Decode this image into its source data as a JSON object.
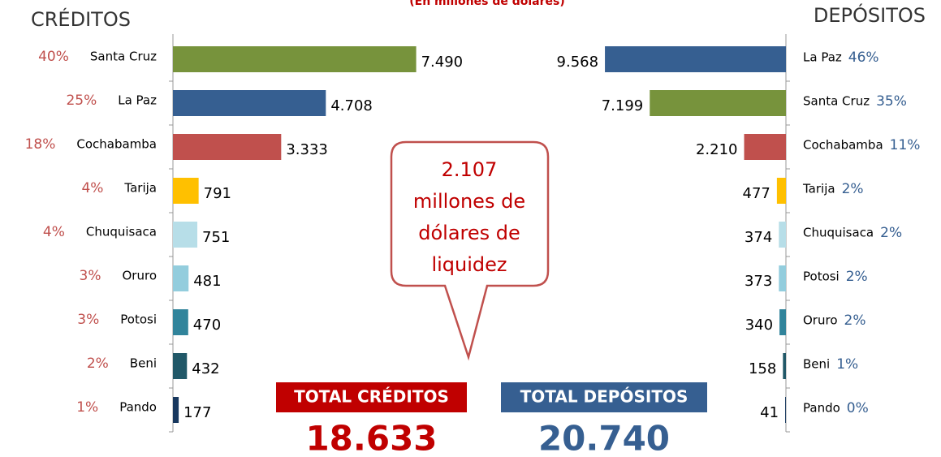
{
  "subtitle": "(En millones de dólares)",
  "callout": [
    "2.107",
    "millones de",
    "dólares de",
    "liquidez"
  ],
  "totals": [
    {
      "label": "TOTAL CRÉDITOS",
      "value": "18.633",
      "color": "#c00000"
    },
    {
      "label": "TOTAL DEPÓSITOS",
      "value": "20.740",
      "color": "#365f91"
    }
  ],
  "chart_data": [
    {
      "type": "bar",
      "title": "CRÉDITOS",
      "orientation": "left",
      "categories": [
        "Santa Cruz",
        "La Paz",
        "Cochabamba",
        "Tarija",
        "Chuquisaca",
        "Oruro",
        "Potosi",
        "Beni",
        "Pando"
      ],
      "values": [
        7490,
        4708,
        3333,
        791,
        751,
        481,
        470,
        432,
        177
      ],
      "value_labels": [
        "7.490",
        "4.708",
        "3.333",
        "791",
        "751",
        "481",
        "470",
        "432",
        "177"
      ],
      "share_labels": [
        "40%",
        "25%",
        "18%",
        "4%",
        "4%",
        "3%",
        "3%",
        "2%",
        "1%"
      ],
      "colors": [
        "#77933c",
        "#365f91",
        "#c0504d",
        "#ffc000",
        "#b7dee8",
        "#93cddd",
        "#31849b",
        "#215868",
        "#17375e"
      ],
      "xlim": [
        0,
        7500
      ]
    },
    {
      "type": "bar",
      "title": "DEPÓSITOS",
      "orientation": "right",
      "categories": [
        "La Paz",
        "Santa Cruz",
        "Cochabamba",
        "Tarija",
        "Chuquisaca",
        "Potosi",
        "Oruro",
        "Beni",
        "Pando"
      ],
      "values": [
        9568,
        7199,
        2210,
        477,
        374,
        373,
        340,
        158,
        41
      ],
      "value_labels": [
        "9.568",
        "7.199",
        "2.210",
        "477",
        "374",
        "373",
        "340",
        "158",
        "41"
      ],
      "share_labels": [
        "46%",
        "35%",
        "11%",
        "2%",
        "2%",
        "2%",
        "2%",
        "1%",
        "0%"
      ],
      "colors": [
        "#365f91",
        "#77933c",
        "#c0504d",
        "#ffc000",
        "#b7dee8",
        "#93cddd",
        "#31849b",
        "#215868",
        "#17375e"
      ],
      "xlim": [
        0,
        10000
      ]
    }
  ]
}
